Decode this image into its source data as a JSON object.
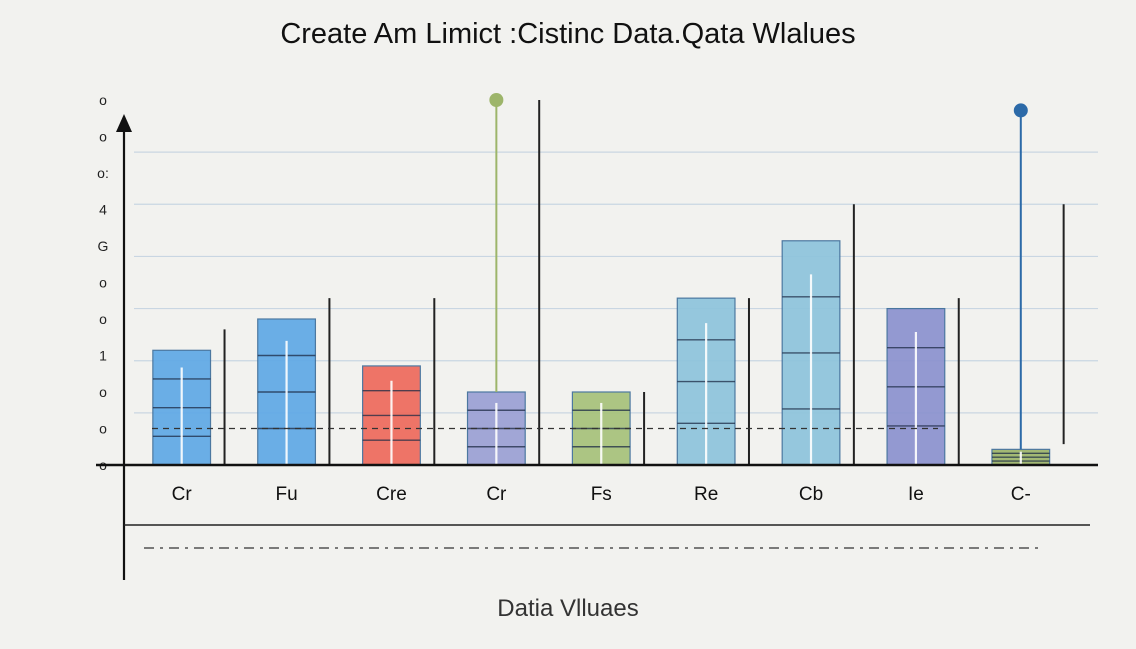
{
  "chart_data": {
    "type": "bar",
    "title": "Create Am Limict :Cistinc Data.Qata Wlalues",
    "xlabel": "Datia Vlluaes",
    "ylabel": "",
    "ylim": [
      0,
      7
    ],
    "y_tick_labels": [
      "o",
      "o",
      "o:",
      "4",
      "G",
      "o",
      "o",
      "1",
      "o",
      "o",
      "o"
    ],
    "categories": [
      "Cr",
      "Fu",
      "Cre",
      "Cr",
      "Fs",
      "Re",
      "Cb",
      "Ie",
      "C-"
    ],
    "values": [
      2.2,
      2.8,
      1.9,
      1.4,
      1.4,
      3.2,
      4.3,
      3.0,
      0.3
    ],
    "errors": [
      {
        "low": 0,
        "high": 2.6
      },
      {
        "low": 0,
        "high": 3.2
      },
      {
        "low": 0,
        "high": 3.2
      },
      {
        "low": 0,
        "high": 7.0
      },
      {
        "low": 0,
        "high": 1.4
      },
      {
        "low": 0,
        "high": 3.2
      },
      {
        "low": 0,
        "high": 5.0
      },
      {
        "low": 0,
        "high": 3.2
      },
      {
        "low": 0.4,
        "high": 5.0
      }
    ],
    "markers": [
      {
        "category_index": 3,
        "value": 7.0,
        "color": "#9db56a"
      },
      {
        "category_index": 8,
        "value": 6.8,
        "color": "#2c6aa8"
      }
    ],
    "reference_value": 0.7,
    "bar_colors": [
      "#5fa9e6",
      "#5fa9e6",
      "#ee6a5c",
      "#9ba0d4",
      "#a7c27a",
      "#8ec4dc",
      "#8ec4dc",
      "#8b92cf",
      "#9db56a"
    ],
    "grid": true
  }
}
